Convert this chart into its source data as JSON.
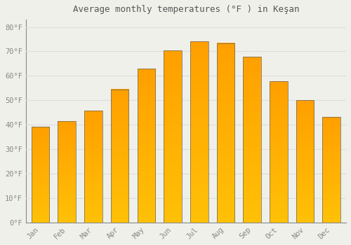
{
  "title": "Average monthly temperatures (°F ) in Keşan",
  "months": [
    "Jan",
    "Feb",
    "Mar",
    "Apr",
    "May",
    "Jun",
    "Jul",
    "Aug",
    "Sep",
    "Oct",
    "Nov",
    "Dec"
  ],
  "values": [
    39.2,
    41.5,
    45.7,
    54.5,
    63.0,
    70.3,
    74.1,
    73.4,
    67.8,
    57.7,
    50.0,
    43.2
  ],
  "bar_color_bottom": "#FFC107",
  "bar_color_top": "#FFA000",
  "bar_edge_color": "#666666",
  "yticks": [
    0,
    10,
    20,
    30,
    40,
    50,
    60,
    70,
    80
  ],
  "ylim": [
    0,
    83
  ],
  "background_color": "#f0f0eb",
  "grid_color": "#dddddd",
  "text_color": "#888888",
  "title_color": "#555555",
  "title_fontsize": 9,
  "tick_fontsize": 7.5
}
